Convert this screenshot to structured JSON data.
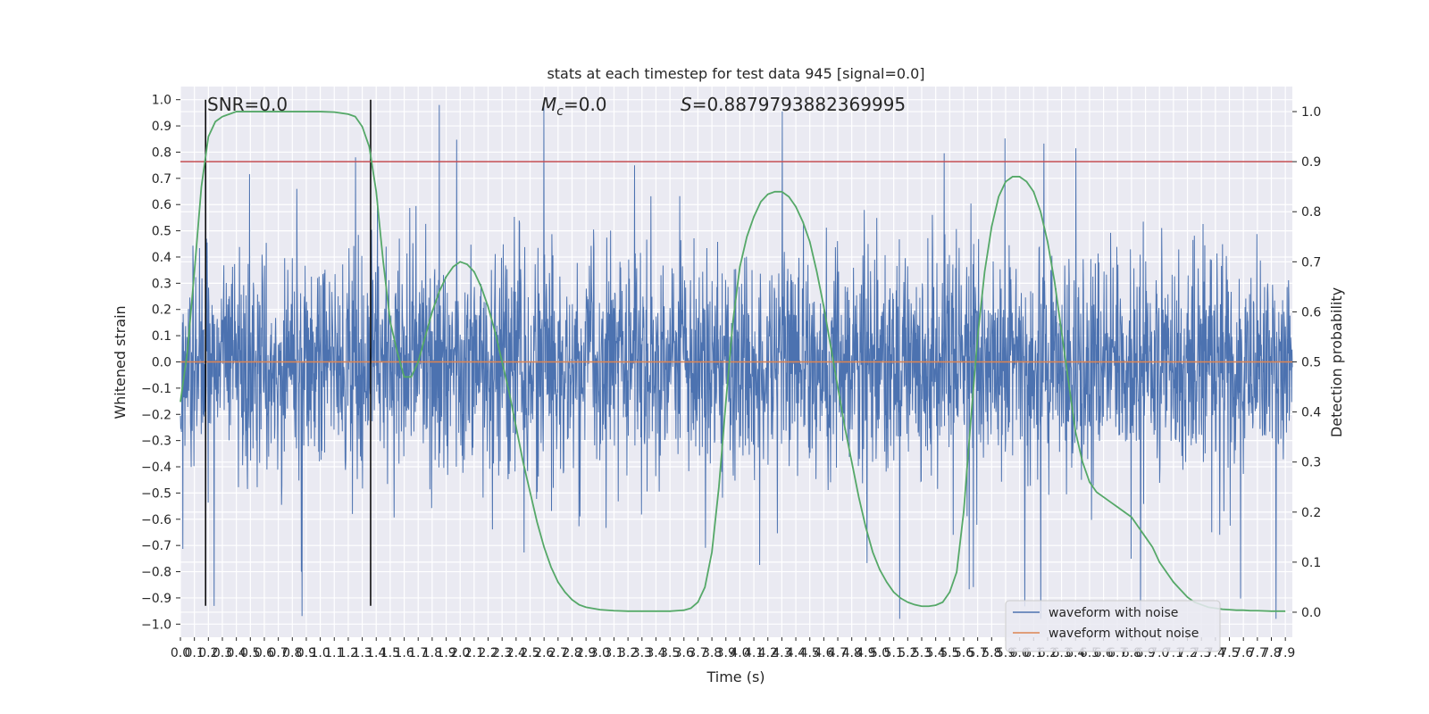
{
  "chart_data": {
    "type": "line",
    "title": "stats at each timestep for test data 945 [signal=0.0]",
    "xlabel": "Time (s)",
    "ylabel": "Whitened strain",
    "y2label": "Detection probability",
    "xlim": [
      0.0,
      7.95
    ],
    "ylim": [
      -1.05,
      1.05
    ],
    "y2lim": [
      -0.05,
      1.05
    ],
    "xticks": [
      "0.0",
      "0.1",
      "0.2",
      "0.3",
      "0.4",
      "0.5",
      "0.6",
      "0.7",
      "0.8",
      "0.9",
      "1.0",
      "1.1",
      "1.2",
      "1.3",
      "1.4",
      "1.5",
      "1.6",
      "1.7",
      "1.8",
      "1.9",
      "2.0",
      "2.1",
      "2.2",
      "2.3",
      "2.4",
      "2.5",
      "2.6",
      "2.7",
      "2.8",
      "2.9",
      "3.0",
      "3.1",
      "3.2",
      "3.3",
      "3.4",
      "3.5",
      "3.6",
      "3.7",
      "3.8",
      "3.9",
      "4.0",
      "4.1",
      "4.2",
      "4.3",
      "4.4",
      "4.5",
      "4.6",
      "4.7",
      "4.8",
      "4.9",
      "5.0",
      "5.1",
      "5.2",
      "5.3",
      "5.4",
      "5.5",
      "5.6",
      "5.7",
      "5.8",
      "5.9",
      "6.0",
      "6.1",
      "6.2",
      "6.3",
      "6.4",
      "6.5",
      "6.6",
      "6.7",
      "6.8",
      "6.9",
      "7.0",
      "7.1",
      "7.2",
      "7.3",
      "7.4",
      "7.5",
      "7.6",
      "7.7",
      "7.8",
      "7.9"
    ],
    "yticks": [
      "1.0",
      "0.9",
      "0.8",
      "0.7",
      "0.6",
      "0.5",
      "0.4",
      "0.3",
      "0.2",
      "0.1",
      "0.0",
      "−0.1",
      "−0.2",
      "−0.3",
      "−0.4",
      "−0.5",
      "−0.6",
      "−0.7",
      "−0.8",
      "−0.9",
      "−1.0"
    ],
    "y2ticks": [
      "1.0",
      "0.9",
      "0.8",
      "0.7",
      "0.6",
      "0.5",
      "0.4",
      "0.3",
      "0.2",
      "0.1",
      "0.0"
    ],
    "annotations": {
      "snr": "SNR=0.0",
      "mc_symbol": "M",
      "mc_sub": "c",
      "mc_value": "=0.0",
      "s_symbol": "S",
      "s_value": "=0.8879793882369995"
    },
    "vertical_lines": [
      0.18,
      1.36
    ],
    "threshold": 0.9,
    "series": [
      {
        "name": "waveform with noise",
        "color": "#4c72b0",
        "style": "dense noise, typical amplitude ±0.35, peaks to ±1.0"
      },
      {
        "name": "waveform without noise",
        "color": "#dd8452",
        "values_constant": 0.0
      },
      {
        "color": "#55a868",
        "axis": "right",
        "x": [
          0.0,
          0.05,
          0.1,
          0.15,
          0.2,
          0.25,
          0.3,
          0.35,
          0.4,
          0.5,
          0.6,
          0.7,
          0.8,
          0.9,
          1.0,
          1.1,
          1.2,
          1.25,
          1.3,
          1.35,
          1.4,
          1.45,
          1.5,
          1.55,
          1.6,
          1.65,
          1.7,
          1.75,
          1.8,
          1.85,
          1.9,
          1.95,
          2.0,
          2.05,
          2.1,
          2.15,
          2.2,
          2.25,
          2.3,
          2.35,
          2.4,
          2.45,
          2.5,
          2.55,
          2.6,
          2.65,
          2.7,
          2.75,
          2.8,
          2.85,
          2.9,
          3.0,
          3.1,
          3.2,
          3.3,
          3.4,
          3.5,
          3.6,
          3.65,
          3.7,
          3.75,
          3.8,
          3.85,
          3.9,
          3.95,
          4.0,
          4.05,
          4.1,
          4.15,
          4.2,
          4.25,
          4.3,
          4.35,
          4.4,
          4.45,
          4.5,
          4.55,
          4.6,
          4.65,
          4.7,
          4.75,
          4.8,
          4.85,
          4.9,
          4.95,
          5.0,
          5.05,
          5.1,
          5.15,
          5.2,
          5.25,
          5.3,
          5.35,
          5.4,
          5.45,
          5.5,
          5.55,
          5.6,
          5.65,
          5.7,
          5.75,
          5.8,
          5.85,
          5.9,
          5.95,
          6.0,
          6.05,
          6.1,
          6.15,
          6.2,
          6.25,
          6.3,
          6.35,
          6.4,
          6.45,
          6.5,
          6.55,
          6.6,
          6.65,
          6.7,
          6.75,
          6.8,
          6.85,
          6.9,
          6.95,
          7.0,
          7.05,
          7.1,
          7.15,
          7.2,
          7.25,
          7.3,
          7.35,
          7.4,
          7.45,
          7.5,
          7.55,
          7.6,
          7.65,
          7.7,
          7.8,
          7.9
        ],
        "values": [
          0.42,
          0.52,
          0.68,
          0.85,
          0.95,
          0.98,
          0.99,
          0.995,
          1.0,
          1.0,
          1.0,
          1.0,
          1.0,
          1.0,
          1.0,
          0.999,
          0.995,
          0.99,
          0.97,
          0.93,
          0.84,
          0.7,
          0.58,
          0.52,
          0.47,
          0.47,
          0.5,
          0.55,
          0.6,
          0.64,
          0.67,
          0.69,
          0.7,
          0.695,
          0.68,
          0.65,
          0.61,
          0.56,
          0.5,
          0.44,
          0.37,
          0.3,
          0.24,
          0.18,
          0.13,
          0.09,
          0.06,
          0.04,
          0.025,
          0.015,
          0.01,
          0.005,
          0.003,
          0.002,
          0.002,
          0.002,
          0.002,
          0.004,
          0.008,
          0.02,
          0.05,
          0.12,
          0.25,
          0.42,
          0.58,
          0.69,
          0.75,
          0.79,
          0.82,
          0.835,
          0.84,
          0.84,
          0.83,
          0.81,
          0.78,
          0.74,
          0.68,
          0.61,
          0.53,
          0.45,
          0.37,
          0.3,
          0.23,
          0.17,
          0.12,
          0.085,
          0.06,
          0.04,
          0.028,
          0.02,
          0.015,
          0.012,
          0.012,
          0.014,
          0.02,
          0.04,
          0.08,
          0.2,
          0.38,
          0.55,
          0.68,
          0.77,
          0.83,
          0.86,
          0.87,
          0.87,
          0.86,
          0.84,
          0.8,
          0.74,
          0.66,
          0.56,
          0.46,
          0.36,
          0.3,
          0.26,
          0.24,
          0.23,
          0.22,
          0.21,
          0.2,
          0.19,
          0.17,
          0.15,
          0.13,
          0.1,
          0.08,
          0.06,
          0.045,
          0.03,
          0.02,
          0.015,
          0.01,
          0.008,
          0.006,
          0.005,
          0.004,
          0.004,
          0.003,
          0.003,
          0.002,
          0.002
        ]
      }
    ],
    "legend": {
      "location": "lower-right"
    },
    "grid": true
  }
}
